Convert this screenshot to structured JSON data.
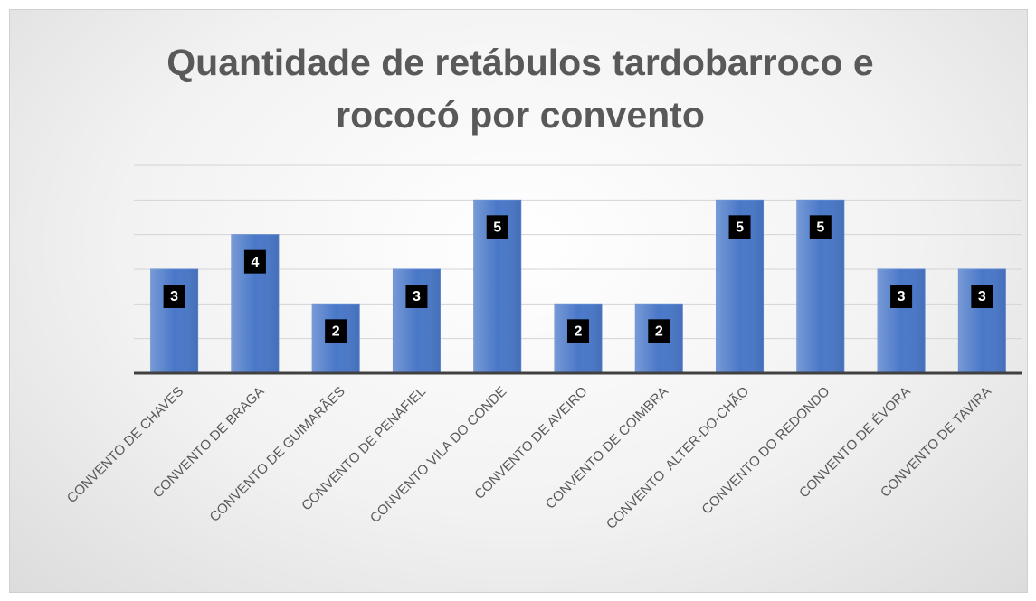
{
  "chart_data": {
    "type": "bar",
    "title": "Quantidade de retábulos tardobarroco e rococó por convento",
    "categories": [
      "CONVENTO DE CHAVES",
      "CONVENTO DE BRAGA",
      "CONVENTO DE GUIMARÃES",
      "CONVENTO DE PENAFIEL",
      "CONVENTO VILA DO CONDE",
      "CONVENTO DE AVEIRO",
      "CONVENTO DE COIMBRA",
      "CONVENTO  ALTER-DO-CHÃO",
      "CONVENTO DO REDONDO",
      "CONVENTO DE ÉVORA",
      "CONVENTO DE TAVIRA"
    ],
    "values": [
      3,
      4,
      2,
      3,
      5,
      2,
      2,
      5,
      5,
      3,
      3
    ],
    "color": "#4a78c8",
    "ylim": [
      0,
      6
    ],
    "yticks": [
      0,
      1,
      2,
      3,
      4,
      5,
      6
    ],
    "show_ytick_labels": false,
    "grid": true,
    "data_labels": true
  }
}
